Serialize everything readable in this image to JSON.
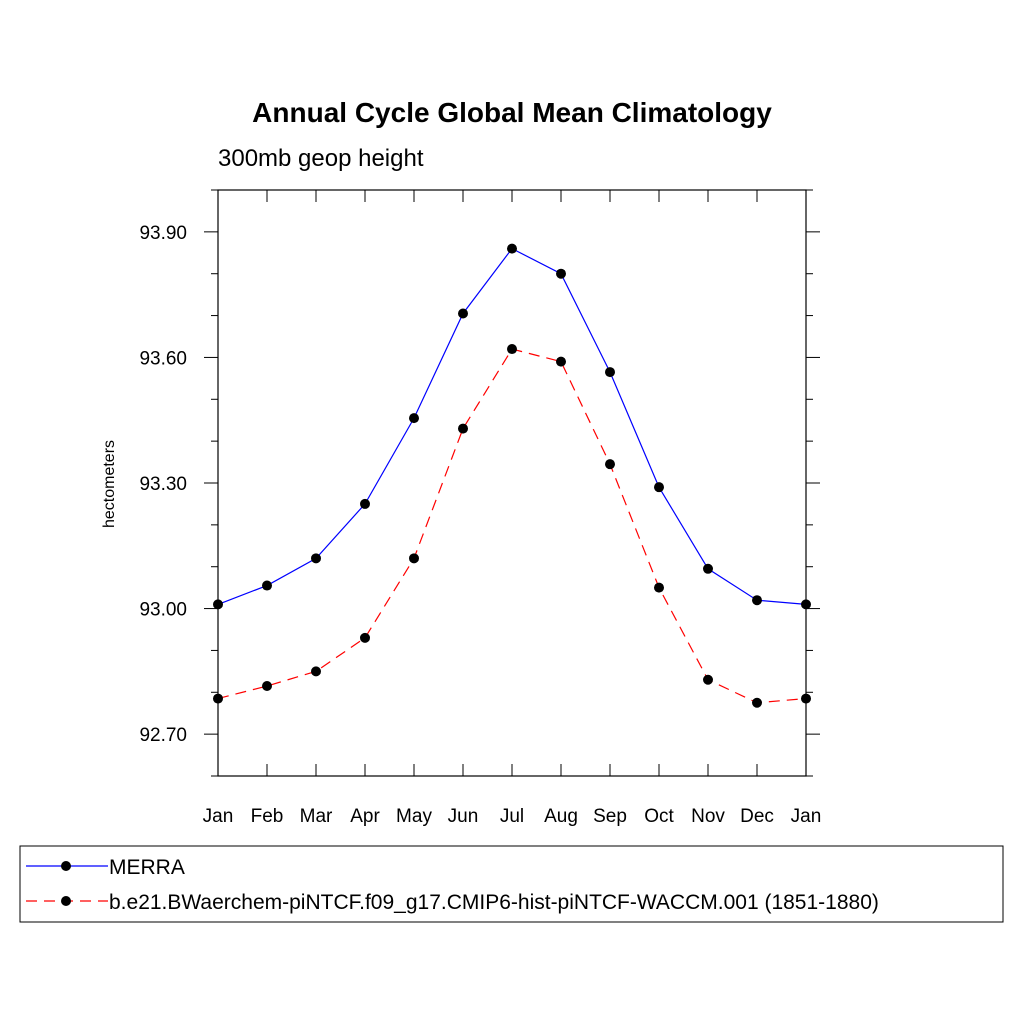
{
  "chart_data": {
    "type": "line",
    "title": "Annual Cycle Global Mean Climatology",
    "subtitle": "300mb geop height",
    "xlabel": "",
    "ylabel": "hectometers",
    "categories": [
      "Jan",
      "Feb",
      "Mar",
      "Apr",
      "May",
      "Jun",
      "Jul",
      "Aug",
      "Sep",
      "Oct",
      "Nov",
      "Dec",
      "Jan"
    ],
    "ylim": [
      92.6,
      94.0
    ],
    "y_ticks": [
      92.7,
      93.0,
      93.3,
      93.6,
      93.9
    ],
    "y_tick_labels": [
      "92.70",
      "93.00",
      "93.30",
      "93.60",
      "93.90"
    ],
    "grid": false,
    "legend_position": "bottom",
    "series": [
      {
        "name": "MERRA",
        "color": "#0000ff",
        "line_style": "solid",
        "marker": "filled-circle",
        "values": [
          93.01,
          93.055,
          93.12,
          93.25,
          93.455,
          93.705,
          93.86,
          93.8,
          93.565,
          93.29,
          93.095,
          93.02,
          93.01
        ]
      },
      {
        "name": "b.e21.BWaerchem-piNTCF.f09_g17.CMIP6-hist-piNTCF-WACCM.001 (1851-1880)",
        "color": "#ff0000",
        "line_style": "dashed",
        "marker": "filled-circle",
        "values": [
          92.785,
          92.815,
          92.85,
          92.93,
          93.12,
          93.43,
          93.62,
          93.59,
          93.345,
          93.05,
          92.83,
          92.775,
          92.785
        ]
      }
    ]
  }
}
